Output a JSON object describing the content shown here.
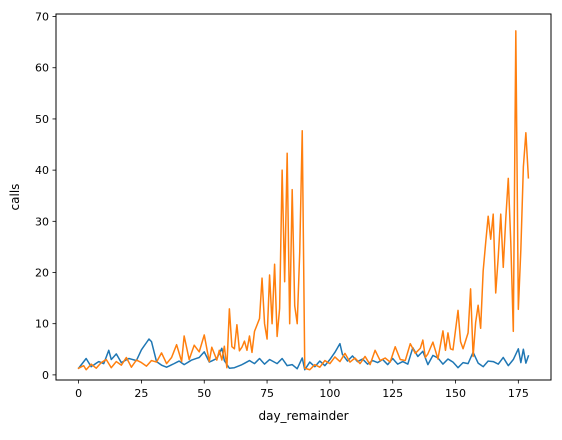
{
  "chart_data": {
    "type": "line",
    "title": "",
    "xlabel": "day_remainder",
    "ylabel": "calls",
    "xlim": [
      -9,
      188
    ],
    "ylim": [
      -1,
      70.5
    ],
    "xticks": [
      0,
      25,
      50,
      75,
      100,
      125,
      150,
      175
    ],
    "yticks": [
      0,
      10,
      20,
      30,
      40,
      50,
      60,
      70
    ],
    "grid": false,
    "legend": "none",
    "colors": [
      "#1f77b4",
      "#ff7f0e"
    ],
    "x_start": 0,
    "x_end": 179,
    "series": [
      {
        "color": "#1f77b4",
        "keypoints": [
          [
            0,
            1.3
          ],
          [
            3,
            3.2
          ],
          [
            5,
            1.6
          ],
          [
            8,
            2.6
          ],
          [
            10,
            2.2
          ],
          [
            12,
            4.8
          ],
          [
            13,
            3.0
          ],
          [
            15,
            4.1
          ],
          [
            17,
            2.4
          ],
          [
            20,
            3.2
          ],
          [
            23,
            2.8
          ],
          [
            25,
            4.9
          ],
          [
            28,
            7.0
          ],
          [
            29,
            6.5
          ],
          [
            31,
            2.6
          ],
          [
            33,
            1.9
          ],
          [
            35,
            1.5
          ],
          [
            38,
            2.2
          ],
          [
            40,
            2.7
          ],
          [
            42,
            2.0
          ],
          [
            45,
            2.9
          ],
          [
            48,
            3.4
          ],
          [
            50,
            4.5
          ],
          [
            52,
            2.5
          ],
          [
            55,
            3.2
          ],
          [
            57,
            5.2
          ],
          [
            58,
            2.8
          ],
          [
            60,
            1.3
          ],
          [
            62,
            1.4
          ],
          [
            65,
            2.0
          ],
          [
            68,
            2.8
          ],
          [
            70,
            2.2
          ],
          [
            72,
            3.2
          ],
          [
            74,
            2.1
          ],
          [
            76,
            3.0
          ],
          [
            79,
            2.2
          ],
          [
            81,
            3.2
          ],
          [
            83,
            1.8
          ],
          [
            85,
            2.0
          ],
          [
            87,
            1.2
          ],
          [
            89,
            3.3
          ],
          [
            90,
            1.0
          ],
          [
            92,
            2.5
          ],
          [
            94,
            1.6
          ],
          [
            96,
            2.7
          ],
          [
            98,
            1.8
          ],
          [
            100,
            3.0
          ],
          [
            102,
            4.4
          ],
          [
            104,
            6.1
          ],
          [
            105,
            4.0
          ],
          [
            107,
            2.7
          ],
          [
            109,
            3.7
          ],
          [
            111,
            2.6
          ],
          [
            113,
            3.1
          ],
          [
            115,
            2.1
          ],
          [
            117,
            2.8
          ],
          [
            119,
            2.4
          ],
          [
            121,
            3.0
          ],
          [
            123,
            2.0
          ],
          [
            125,
            3.2
          ],
          [
            127,
            2.1
          ],
          [
            129,
            2.6
          ],
          [
            131,
            2.1
          ],
          [
            133,
            5.3
          ],
          [
            135,
            3.6
          ],
          [
            137,
            4.6
          ],
          [
            139,
            2.0
          ],
          [
            141,
            3.8
          ],
          [
            143,
            3.3
          ],
          [
            145,
            2.1
          ],
          [
            147,
            3.1
          ],
          [
            149,
            2.5
          ],
          [
            151,
            1.4
          ],
          [
            153,
            2.4
          ],
          [
            155,
            2.2
          ],
          [
            157,
            4.4
          ],
          [
            159,
            2.3
          ],
          [
            161,
            1.6
          ],
          [
            163,
            2.7
          ],
          [
            165,
            2.6
          ],
          [
            167,
            2.1
          ],
          [
            169,
            3.4
          ],
          [
            171,
            1.8
          ],
          [
            173,
            3.0
          ],
          [
            175,
            5.1
          ],
          [
            176,
            2.4
          ],
          [
            177,
            5.0
          ],
          [
            178,
            2.3
          ],
          [
            179,
            3.7
          ]
        ]
      },
      {
        "color": "#ff7f0e",
        "keypoints": [
          [
            0,
            1.3
          ],
          [
            2,
            1.8
          ],
          [
            3,
            1.0
          ],
          [
            5,
            2.1
          ],
          [
            7,
            1.3
          ],
          [
            9,
            2.4
          ],
          [
            11,
            3.0
          ],
          [
            13,
            1.4
          ],
          [
            15,
            2.6
          ],
          [
            17,
            1.9
          ],
          [
            19,
            3.4
          ],
          [
            21,
            1.5
          ],
          [
            23,
            2.9
          ],
          [
            25,
            2.4
          ],
          [
            27,
            1.7
          ],
          [
            29,
            2.8
          ],
          [
            31,
            2.5
          ],
          [
            33,
            4.3
          ],
          [
            35,
            2.2
          ],
          [
            37,
            3.4
          ],
          [
            39,
            5.9
          ],
          [
            41,
            2.6
          ],
          [
            42,
            7.6
          ],
          [
            44,
            3.0
          ],
          [
            46,
            5.8
          ],
          [
            48,
            4.5
          ],
          [
            50,
            7.8
          ],
          [
            52,
            2.6
          ],
          [
            53,
            5.4
          ],
          [
            55,
            2.9
          ],
          [
            56,
            4.8
          ],
          [
            57,
            2.9
          ],
          [
            58,
            5.6
          ],
          [
            59,
            1.4
          ],
          [
            60,
            12.9
          ],
          [
            61,
            5.5
          ],
          [
            62,
            5.1
          ],
          [
            63,
            9.8
          ],
          [
            64,
            4.7
          ],
          [
            65,
            5.4
          ],
          [
            66,
            6.6
          ],
          [
            67,
            4.8
          ],
          [
            68,
            7.6
          ],
          [
            69,
            4.4
          ],
          [
            70,
            8.5
          ],
          [
            72,
            11.0
          ],
          [
            73,
            18.9
          ],
          [
            74,
            10.0
          ],
          [
            75,
            7.0
          ],
          [
            76,
            19.5
          ],
          [
            77,
            10.0
          ],
          [
            78,
            21.6
          ],
          [
            79,
            7.5
          ],
          [
            80,
            13.0
          ],
          [
            81,
            40.0
          ],
          [
            82,
            18.2
          ],
          [
            83,
            43.3
          ],
          [
            84,
            10.0
          ],
          [
            85,
            36.2
          ],
          [
            86,
            13.5
          ],
          [
            87,
            10.0
          ],
          [
            88,
            24.0
          ],
          [
            89,
            47.7
          ],
          [
            90,
            1.3
          ],
          [
            92,
            1.0
          ],
          [
            94,
            2.0
          ],
          [
            96,
            1.5
          ],
          [
            98,
            2.8
          ],
          [
            100,
            2.2
          ],
          [
            102,
            3.5
          ],
          [
            104,
            2.6
          ],
          [
            106,
            4.2
          ],
          [
            108,
            2.5
          ],
          [
            110,
            3.3
          ],
          [
            112,
            2.2
          ],
          [
            114,
            3.6
          ],
          [
            116,
            2.0
          ],
          [
            118,
            4.8
          ],
          [
            120,
            2.8
          ],
          [
            122,
            3.3
          ],
          [
            124,
            2.5
          ],
          [
            126,
            5.5
          ],
          [
            128,
            3.0
          ],
          [
            130,
            2.8
          ],
          [
            132,
            6.1
          ],
          [
            134,
            4.2
          ],
          [
            136,
            5.2
          ],
          [
            137,
            6.8
          ],
          [
            138,
            3.4
          ],
          [
            139,
            4.1
          ],
          [
            141,
            6.4
          ],
          [
            143,
            3.1
          ],
          [
            145,
            8.6
          ],
          [
            146,
            4.8
          ],
          [
            147,
            8.2
          ],
          [
            148,
            5.1
          ],
          [
            149,
            4.9
          ],
          [
            151,
            12.6
          ],
          [
            152,
            6.5
          ],
          [
            153,
            5.1
          ],
          [
            155,
            8.2
          ],
          [
            156,
            16.8
          ],
          [
            157,
            3.6
          ],
          [
            158,
            10.2
          ],
          [
            159,
            13.6
          ],
          [
            160,
            9.1
          ],
          [
            161,
            20.3
          ],
          [
            162,
            25.8
          ],
          [
            163,
            31.0
          ],
          [
            164,
            26.5
          ],
          [
            165,
            31.4
          ],
          [
            166,
            16.0
          ],
          [
            167,
            23.0
          ],
          [
            168,
            31.4
          ],
          [
            169,
            21.0
          ],
          [
            170,
            30.5
          ],
          [
            171,
            38.4
          ],
          [
            172,
            25.8
          ],
          [
            173,
            8.5
          ],
          [
            174,
            67.2
          ],
          [
            175,
            12.8
          ],
          [
            176,
            24.5
          ],
          [
            177,
            40.6
          ],
          [
            178,
            47.3
          ],
          [
            179,
            38.5
          ]
        ]
      }
    ]
  }
}
